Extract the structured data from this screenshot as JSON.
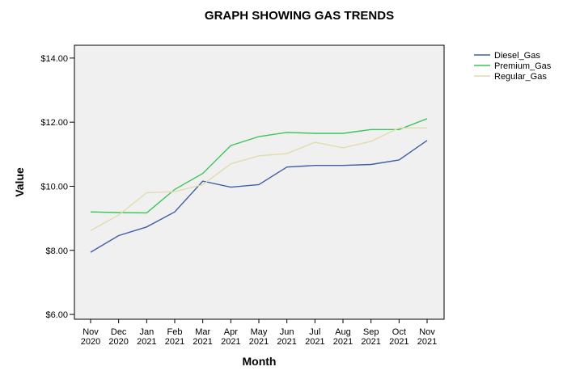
{
  "chart_data": {
    "type": "line",
    "title": "GRAPH SHOWING GAS TRENDS",
    "xlabel": "Month",
    "ylabel": "Value",
    "categories": [
      [
        "Nov",
        "2020"
      ],
      [
        "Dec",
        "2020"
      ],
      [
        "Jan",
        "2021"
      ],
      [
        "Feb",
        "2021"
      ],
      [
        "Mar",
        "2021"
      ],
      [
        "Apr",
        "2021"
      ],
      [
        "May",
        "2021"
      ],
      [
        "Jun",
        "2021"
      ],
      [
        "Jul",
        "2021"
      ],
      [
        "Aug",
        "2021"
      ],
      [
        "Sep",
        "2021"
      ],
      [
        "Oct",
        "2021"
      ],
      [
        "Nov",
        "2021"
      ]
    ],
    "ylim": [
      5.85,
      14.4
    ],
    "yticks": [
      {
        "value": 6,
        "label": "$6.00"
      },
      {
        "value": 8,
        "label": "$8.00"
      },
      {
        "value": 10,
        "label": "$10.00"
      },
      {
        "value": 12,
        "label": "$12.00"
      },
      {
        "value": 14,
        "label": "$14.00"
      }
    ],
    "grid": false,
    "legend_position": "right",
    "plot_background": "#f0f0f0",
    "series": [
      {
        "name": "Diesel_Gas",
        "color": "#3f5fa5",
        "values": [
          7.94,
          8.46,
          8.73,
          9.2,
          10.16,
          9.97,
          10.05,
          10.6,
          10.65,
          10.65,
          10.68,
          10.82,
          11.43
        ]
      },
      {
        "name": "Premium_Gas",
        "color": "#3cc45a",
        "values": [
          9.2,
          9.18,
          9.17,
          9.9,
          10.4,
          11.27,
          11.55,
          11.68,
          11.65,
          11.65,
          11.77,
          11.77,
          12.11
        ]
      },
      {
        "name": "Regular_Gas",
        "color": "#e0dcae",
        "values": [
          8.62,
          9.1,
          9.8,
          9.83,
          10.05,
          10.7,
          10.95,
          11.02,
          11.37,
          11.2,
          11.4,
          11.82,
          11.82
        ]
      }
    ]
  }
}
